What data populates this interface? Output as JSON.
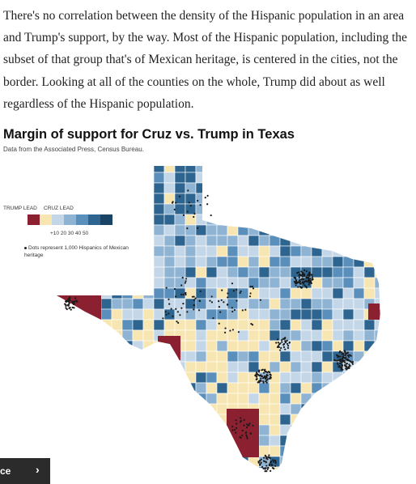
{
  "article": {
    "paragraph": "There's no correlation between the density of the Hispanic population in an area and Trump's support, by the way. Most of the Hispanic population, including the subset of that group that's of Mexican heritage, is centered in the cities, not the border. Looking at all of the counties on the whole, Trump did about as well regardless of the Hispanic population."
  },
  "chart": {
    "title": "Margin of support for Cruz vs. Trump in Texas",
    "source": "Data from the Associated Press, Census Bureau.",
    "legend": {
      "trump_lead": "TRUMP LEAD",
      "cruz_lead": "CRUZ LEAD",
      "ticks": "+10 20 30 40 50",
      "note": "Dots represent 1,000 Hispanics of Mexican heritage",
      "colors": [
        "#8b2130",
        "#f8e6b2",
        "#c4d7e8",
        "#8fb3d3",
        "#5a8fbb",
        "#2d6590",
        "#1a4466"
      ]
    },
    "map_colors": {
      "trump": "#8b2130",
      "tie": "#f8e6b2",
      "cruz_light": "#c4d7e8",
      "cruz_medium": "#8fb3d3",
      "cruz_strong": "#5a8fbb",
      "cruz_darker": "#2d6590",
      "dot": "#1a1a1a"
    }
  },
  "nav": {
    "button_label": "ce",
    "chevron": "›"
  }
}
